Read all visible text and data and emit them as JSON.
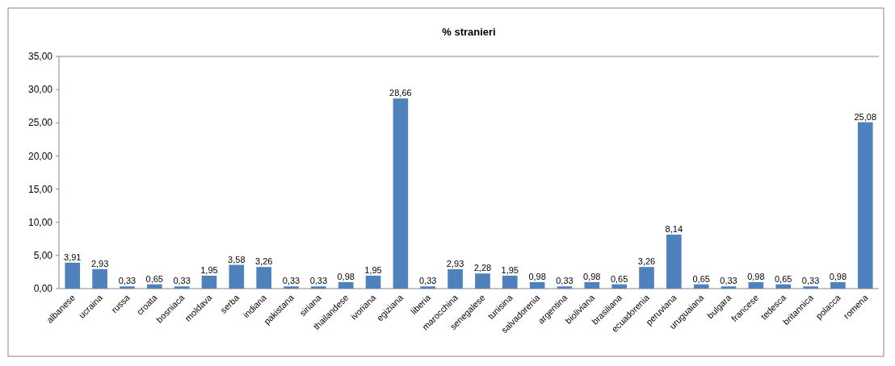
{
  "chart_data": {
    "type": "bar",
    "title": "% stranieri",
    "categories": [
      "albanese",
      "ucraina",
      "russa",
      "croata",
      "bosniaca",
      "moldava",
      "serba",
      "indiana",
      "pakistana",
      "siriana",
      "thailandese",
      "ivoriana",
      "egiziana",
      "liberia",
      "marocchina",
      "senegalese",
      "tunisina",
      "salvadorenia",
      "argentina",
      "bioliviana",
      "brasiliana",
      "ecuadorenia",
      "peruviana",
      "uruguaiana",
      "bulgara",
      "francese",
      "tedesca",
      "britannica",
      "polacca",
      "romena"
    ],
    "values": [
      3.91,
      2.93,
      0.33,
      0.65,
      0.33,
      1.95,
      3.58,
      3.26,
      0.33,
      0.33,
      0.98,
      1.95,
      28.66,
      0.33,
      2.93,
      2.28,
      1.95,
      0.98,
      0.33,
      0.98,
      0.65,
      3.26,
      8.14,
      0.65,
      0.33,
      0.98,
      0.65,
      0.33,
      0.98,
      25.08
    ],
    "value_labels": [
      "3,91",
      "2,93",
      "0,33",
      "0,65",
      "0,33",
      "1,95",
      "3,58",
      "3,26",
      "0,33",
      "0,33",
      "0,98",
      "1,95",
      "28,66",
      "0,33",
      "2,93",
      "2,28",
      "1,95",
      "0,98",
      "0,33",
      "0,98",
      "0,65",
      "3,26",
      "8,14",
      "0,65",
      "0,33",
      "0,98",
      "0,65",
      "0,33",
      "0,98",
      "25,08"
    ],
    "color": "#4f81bd",
    "ylim": [
      0,
      35
    ],
    "yticks": [
      {
        "value": 0,
        "label": "0,00"
      },
      {
        "value": 5,
        "label": "5,00"
      },
      {
        "value": 10,
        "label": "10,00"
      },
      {
        "value": 15,
        "label": "15,00"
      },
      {
        "value": 20,
        "label": "20,00"
      },
      {
        "value": 25,
        "label": "25,00"
      },
      {
        "value": 30,
        "label": "30,00"
      },
      {
        "value": 35,
        "label": "35,00"
      }
    ],
    "grid": false
  }
}
